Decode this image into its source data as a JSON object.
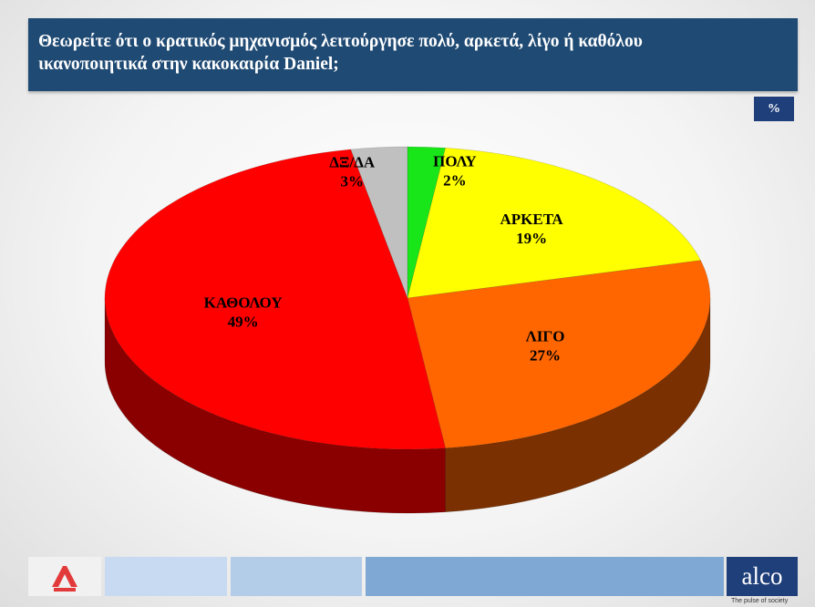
{
  "header": {
    "title_line1": "Θεωρείτε ότι ο κρατικός μηχανισμός λειτούργησε πολύ, αρκετά, λίγο ή καθόλου",
    "title_line2": "ικανοποιητικά στην κακοκαιρία Daniel;"
  },
  "unit_badge": "%",
  "chart_data": {
    "type": "pie",
    "title": "Θεωρείτε ότι ο κρατικός μηχανισμός λειτούργησε πολύ, αρκετά, λίγο ή καθόλου ικανοποιητικά στην κακοκαιρία Daniel;",
    "categories": [
      "ΠΟΛΥ",
      "ΑΡΚΕΤΑ",
      "ΛΙΓΟ",
      "ΚΑΘΟΛΟΥ",
      "ΔΞ/ΔΑ"
    ],
    "values": [
      2,
      19,
      27,
      49,
      3
    ],
    "value_labels": [
      "2%",
      "19%",
      "27%",
      "49%",
      "3%"
    ],
    "colors": [
      "#19e619",
      "#ffff00",
      "#ff6600",
      "#ff0000",
      "#c0c0c0"
    ],
    "side_colors": [
      "#0a7a0a",
      "#8a8a00",
      "#7a3000",
      "#8a0000",
      "#6a6a6a"
    ],
    "style": "3d"
  },
  "footer": {
    "left_logo_icon": "alpha-news-logo",
    "brand": "alco",
    "tagline": "The pulse of society",
    "band_colors": [
      "#c7daf1",
      "#b3cde8",
      "#7fa9d4"
    ]
  }
}
